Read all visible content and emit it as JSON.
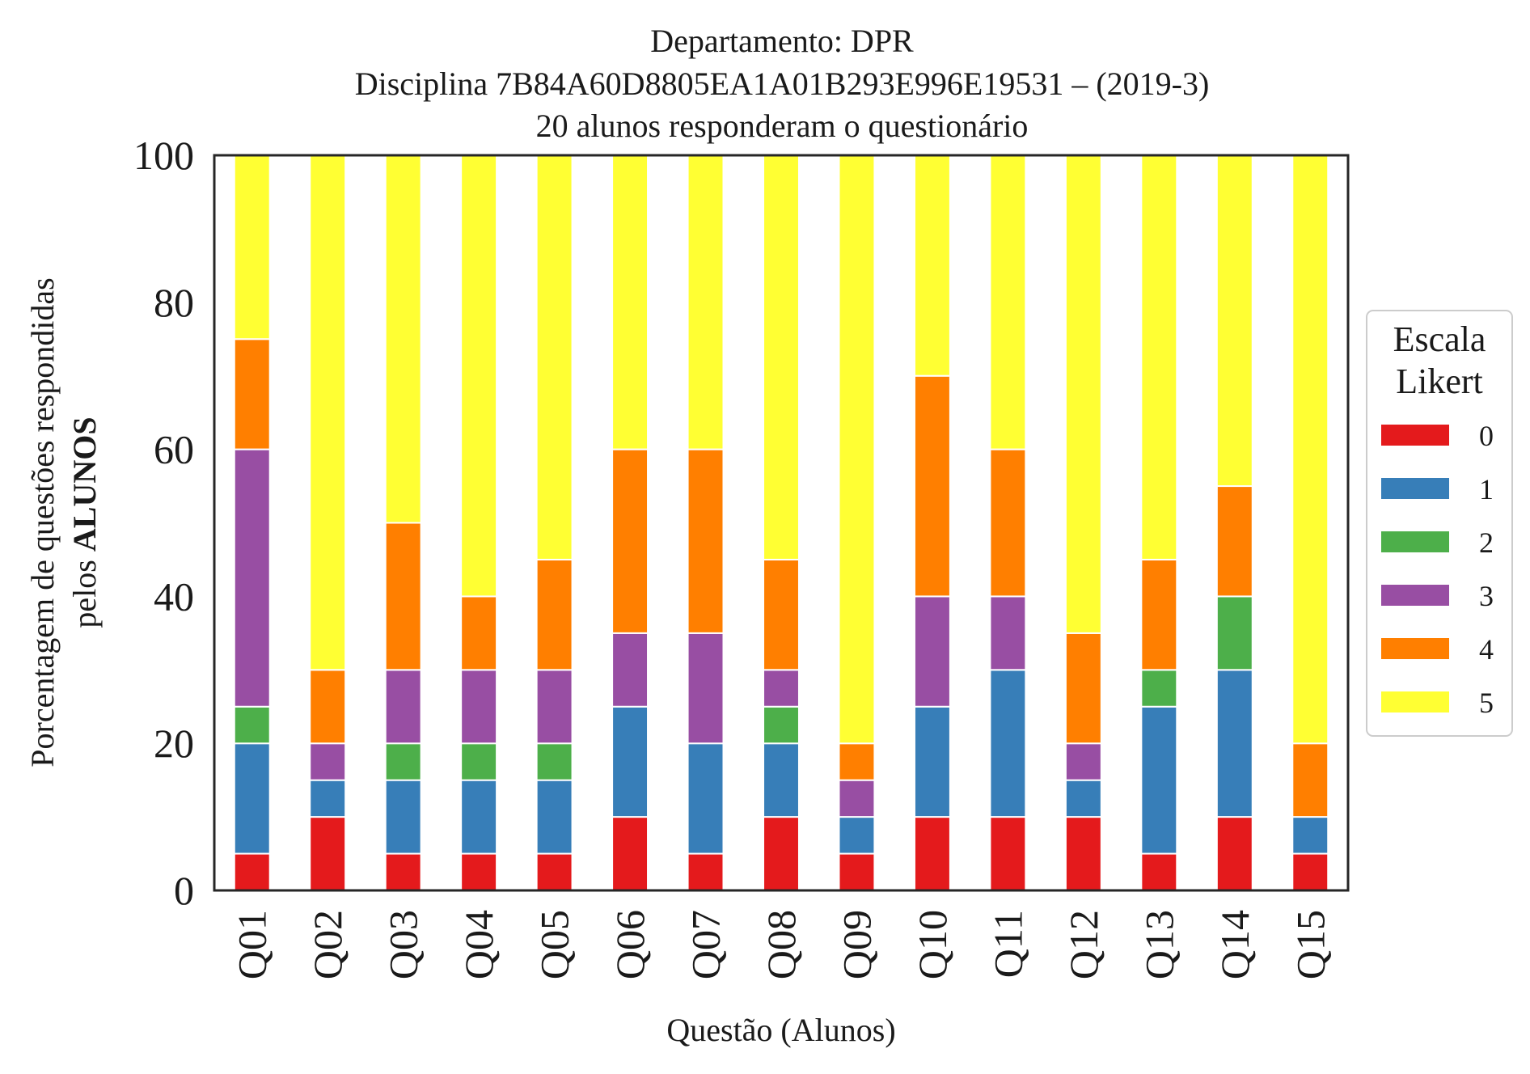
{
  "chart_data": {
    "type": "bar",
    "stacked": true,
    "title_lines": [
      "Departamento: DPR",
      "Disciplina 7B84A60D8805EA1A01B293E996E19531 – (2019-3)",
      "20 alunos responderam o questionário"
    ],
    "xlabel": "Questão (Alunos)",
    "ylabel_line1": "Porcentagem de questões respondidas",
    "ylabel_line2_prefix": "pelos ",
    "ylabel_line2_bold": "ALUNOS",
    "ylim": [
      0,
      100
    ],
    "yticks": [
      "0",
      "20",
      "40",
      "60",
      "80",
      "100"
    ],
    "grid": false,
    "legend": {
      "title_lines": [
        "Escala",
        "Likert"
      ],
      "placement": "right"
    },
    "categories": [
      "Q01",
      "Q02",
      "Q03",
      "Q04",
      "Q05",
      "Q06",
      "Q07",
      "Q08",
      "Q09",
      "Q10",
      "Q11",
      "Q12",
      "Q13",
      "Q14",
      "Q15"
    ],
    "series": [
      {
        "name": "0",
        "color": "#e41a1c",
        "values": [
          5,
          10,
          5,
          5,
          5,
          10,
          5,
          10,
          5,
          10,
          10,
          10,
          5,
          10,
          5
        ]
      },
      {
        "name": "1",
        "color": "#377eb8",
        "values": [
          15,
          5,
          10,
          10,
          10,
          15,
          15,
          10,
          5,
          15,
          20,
          5,
          20,
          20,
          5
        ]
      },
      {
        "name": "2",
        "color": "#4daf4a",
        "values": [
          5,
          0,
          5,
          5,
          5,
          0,
          0,
          5,
          0,
          0,
          0,
          0,
          5,
          10,
          0
        ]
      },
      {
        "name": "3",
        "color": "#984ea3",
        "values": [
          35,
          5,
          10,
          10,
          10,
          10,
          15,
          5,
          5,
          15,
          10,
          5,
          0,
          0,
          0
        ]
      },
      {
        "name": "4",
        "color": "#ff7f00",
        "values": [
          15,
          10,
          20,
          10,
          15,
          25,
          25,
          15,
          5,
          30,
          20,
          15,
          15,
          15,
          10
        ]
      },
      {
        "name": "5",
        "color": "#ffff33",
        "values": [
          25,
          70,
          50,
          60,
          55,
          40,
          40,
          55,
          80,
          30,
          40,
          65,
          55,
          45,
          80
        ]
      }
    ]
  }
}
